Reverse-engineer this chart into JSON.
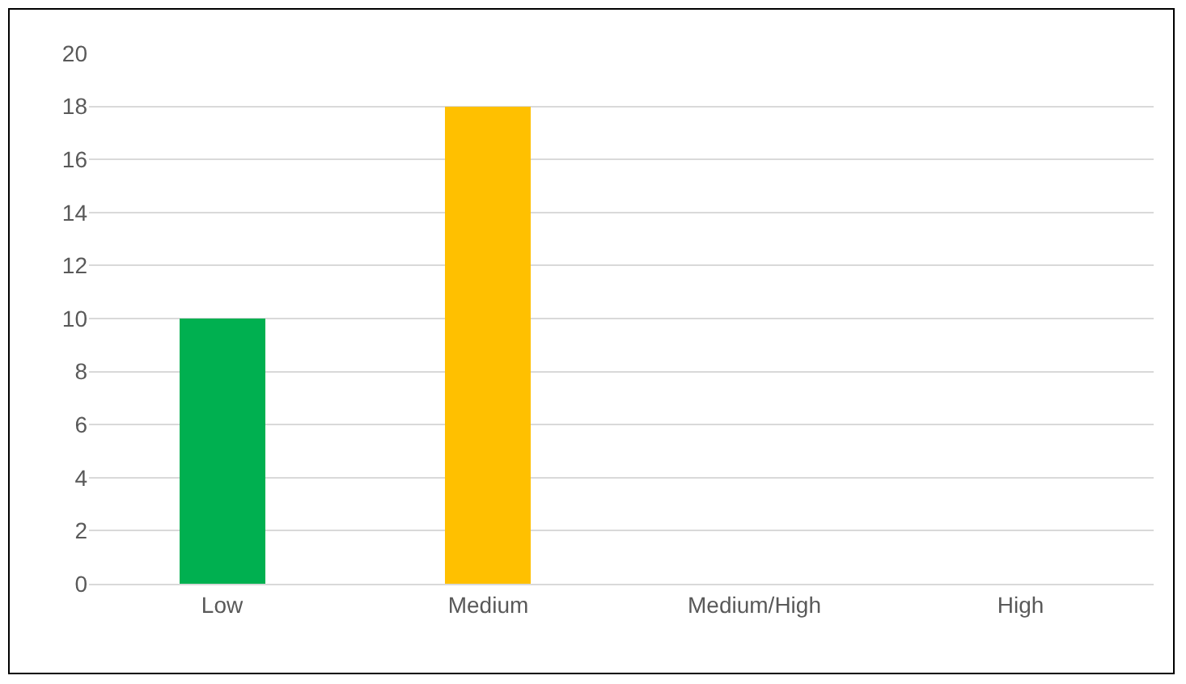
{
  "chart_data": {
    "type": "bar",
    "categories": [
      "Low",
      "Medium",
      "Medium/High",
      "High"
    ],
    "values": [
      10,
      18,
      null,
      null
    ],
    "colors": [
      "#00b050",
      "#ffc000",
      null,
      null
    ],
    "ylim": [
      0,
      20
    ],
    "yticks": [
      0,
      2,
      4,
      6,
      8,
      10,
      12,
      14,
      16,
      18,
      20
    ],
    "grid": "y",
    "legend": false
  }
}
